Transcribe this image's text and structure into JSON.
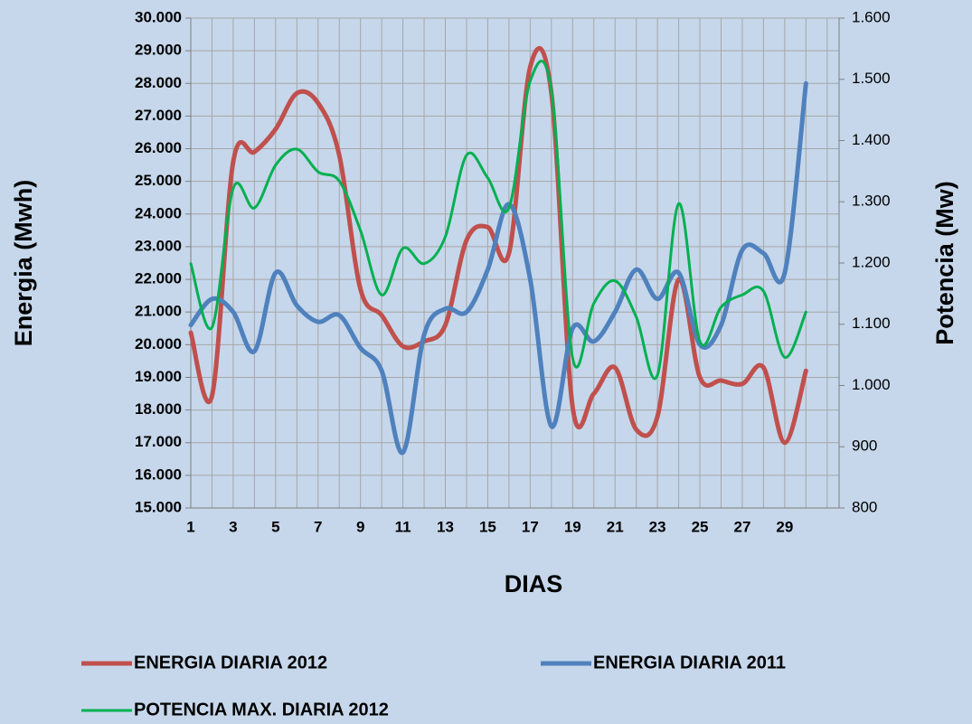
{
  "chart_data": {
    "type": "line",
    "x_label": "DIAS",
    "y_label": "Energia (Mwh)",
    "y2_label": "Potencia (Mw)",
    "categories": [
      "1",
      null,
      "3",
      null,
      "5",
      null,
      "7",
      null,
      "9",
      null,
      "11",
      null,
      "13",
      null,
      "15",
      null,
      "17",
      null,
      "19",
      null,
      "21",
      null,
      "23",
      null,
      "25",
      null,
      "27",
      null,
      "29",
      null
    ],
    "series": [
      {
        "name": "ENERGIA DIARIA 2012",
        "color": "#c0504d",
        "values": [
          20370,
          18430,
          25600,
          25900,
          26600,
          27700,
          27400,
          25800,
          21700,
          20900,
          19950,
          20100,
          20600,
          23200,
          23600,
          22800,
          28500,
          27700,
          18100,
          18500,
          19300,
          17400,
          17800,
          22000,
          19000,
          18900,
          18800,
          19300,
          17000,
          19200
        ]
      },
      {
        "name": "ENERGIA DIARIA 2011",
        "color": "#4f81bd",
        "values": [
          20600,
          21400,
          21000,
          19800,
          22200,
          21200,
          20700,
          20900,
          19900,
          19200,
          16700,
          20300,
          21100,
          21000,
          22300,
          24300,
          22000,
          17500,
          20500,
          20100,
          21000,
          22300,
          21400,
          22200,
          20000,
          20600,
          22900,
          22800,
          22200,
          28000
        ]
      },
      {
        "name": "POTENCIA MAX. DIARIA 2012",
        "color": "#00b050",
        "axis": "y2",
        "values": [
          1199,
          1095,
          1322,
          1290,
          1360,
          1386,
          1349,
          1334,
          1253,
          1148,
          1224,
          1199,
          1243,
          1376,
          1339,
          1290,
          1497,
          1482,
          1045,
          1134,
          1171,
          1112,
          1017,
          1297,
          1072,
          1128,
          1148,
          1154,
          1046,
          1120
        ]
      }
    ],
    "ylim": [
      15000,
      30000
    ],
    "yticks": [
      {
        "value": 15000,
        "label": "15.000"
      },
      {
        "value": 16000,
        "label": "16.000"
      },
      {
        "value": 17000,
        "label": "17.000"
      },
      {
        "value": 18000,
        "label": "18.000"
      },
      {
        "value": 19000,
        "label": "19.000"
      },
      {
        "value": 20000,
        "label": "20.000"
      },
      {
        "value": 21000,
        "label": "21.000"
      },
      {
        "value": 22000,
        "label": "22.000"
      },
      {
        "value": 23000,
        "label": "23.000"
      },
      {
        "value": 24000,
        "label": "24.000"
      },
      {
        "value": 25000,
        "label": "25.000"
      },
      {
        "value": 26000,
        "label": "26.000"
      },
      {
        "value": 27000,
        "label": "27.000"
      },
      {
        "value": 28000,
        "label": "28.000"
      },
      {
        "value": 29000,
        "label": "29.000"
      },
      {
        "value": 30000,
        "label": "30.000"
      }
    ],
    "y2lim": [
      800,
      1600
    ],
    "y2ticks": [
      800,
      900,
      {
        "value": 1000,
        "label": "1.000"
      },
      {
        "value": 1100,
        "label": "1.100"
      },
      {
        "value": 1200,
        "label": "1.200"
      },
      {
        "value": 1300,
        "label": "1.300"
      },
      {
        "value": 1400,
        "label": "1.400"
      },
      {
        "value": 1500,
        "label": "1.500"
      },
      {
        "value": 1600,
        "label": "1.600"
      }
    ],
    "grid": true,
    "smooth": true,
    "legend": "bottom"
  }
}
